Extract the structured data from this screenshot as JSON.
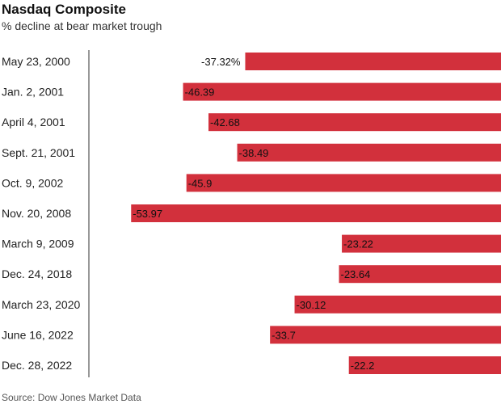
{
  "title": "Nasdaq Composite",
  "subtitle": "% decline at bear market trough",
  "source": "Source: Dow Jones Market Data",
  "colors": {
    "bar": "#d2303c",
    "axis": "#555555"
  },
  "chart_data": {
    "type": "bar",
    "orientation": "horizontal",
    "title": "Nasdaq Composite",
    "subtitle": "% decline at bear market trough",
    "categories": [
      "May 23, 2000",
      "Jan. 2, 2001",
      "April 4, 2001",
      "Sept. 21, 2001",
      "Oct. 9, 2002",
      "Nov. 20, 2008",
      "March 9, 2009",
      "Dec. 24, 2018",
      "March 23, 2020",
      "June 16, 2022",
      "Dec. 28, 2022"
    ],
    "values": [
      -37.32,
      -46.39,
      -42.68,
      -38.49,
      -45.9,
      -53.97,
      -23.22,
      -23.64,
      -30.12,
      -33.7,
      -22.2
    ],
    "value_labels": [
      "-37.32%",
      "-46.39",
      "-42.68",
      "-38.49",
      "-45.9",
      "-53.97",
      "-23.22",
      "-23.64",
      "-30.12",
      "-33.7",
      "-22.2"
    ],
    "xlim": [
      -54,
      0
    ],
    "grid": false,
    "legend": "none"
  }
}
